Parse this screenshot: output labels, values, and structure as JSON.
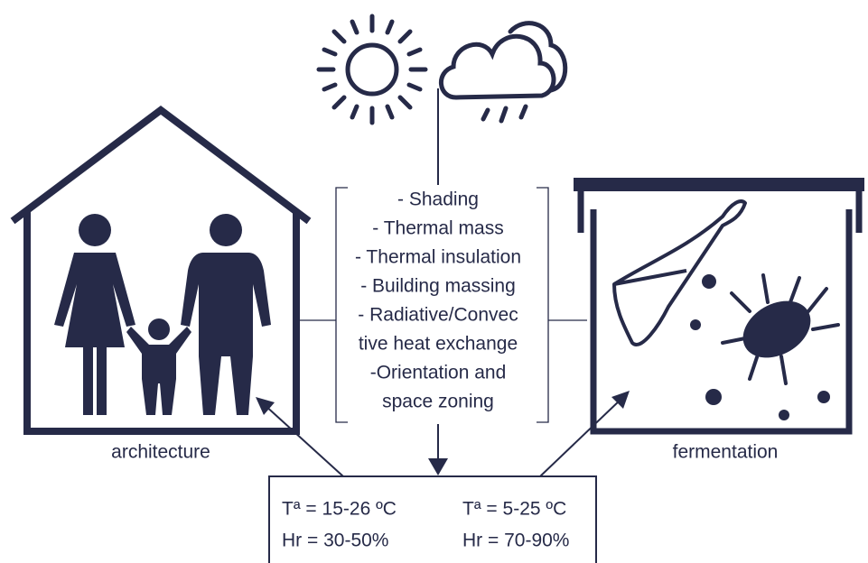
{
  "center_list": {
    "lines": [
      "- Shading",
      "- Thermal mass",
      "- Thermal insulation",
      "- Building massing",
      "- Radiative/Convec",
      "tive heat exchange",
      "-Orientation and",
      "space zoning"
    ]
  },
  "labels": {
    "left": "architecture",
    "right": "fermentation"
  },
  "conditions": {
    "left": [
      "Tª = 15-26 ºC",
      "Hr = 30-50%"
    ],
    "right": [
      "Tª = 5-25 ºC",
      "Hr = 70-90%"
    ]
  }
}
